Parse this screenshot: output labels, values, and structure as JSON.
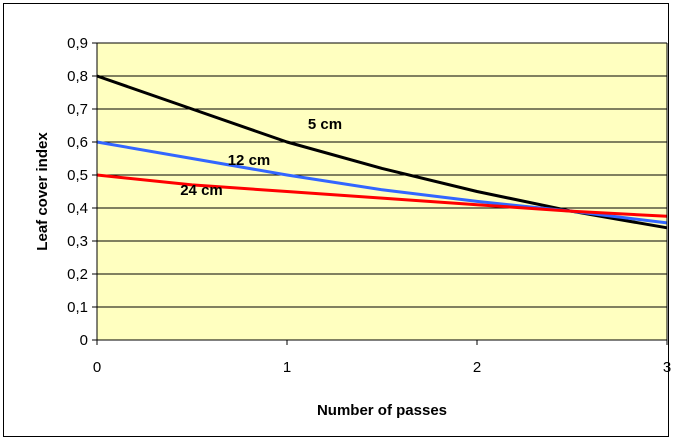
{
  "chart_data": {
    "type": "line",
    "title": "",
    "xlabel": "Number of passes",
    "ylabel": "Leaf cover index",
    "xlim": [
      0,
      3
    ],
    "ylim": [
      0,
      0.9
    ],
    "x_ticks": [
      "0",
      "1",
      "2",
      "3"
    ],
    "y_ticks": [
      "0",
      "0,1",
      "0,2",
      "0,3",
      "0,4",
      "0,5",
      "0,6",
      "0,7",
      "0,8",
      "0,9"
    ],
    "grid": "horizontal",
    "plot_background": "#ffffc0",
    "series": [
      {
        "name": "5 cm",
        "color": "#000000",
        "x": [
          0,
          0.5,
          1,
          1.5,
          2,
          2.5,
          3
        ],
        "y": [
          0.8,
          0.7,
          0.6,
          0.52,
          0.45,
          0.39,
          0.34
        ]
      },
      {
        "name": "12 cm",
        "color": "#3366ff",
        "x": [
          0,
          0.5,
          1,
          1.5,
          2,
          2.5,
          3
        ],
        "y": [
          0.6,
          0.55,
          0.5,
          0.455,
          0.42,
          0.39,
          0.355
        ]
      },
      {
        "name": "24 cm",
        "color": "#ff0000",
        "x": [
          0,
          0.5,
          1,
          1.5,
          2,
          2.5,
          3
        ],
        "y": [
          0.5,
          0.47,
          0.45,
          0.43,
          0.41,
          0.39,
          0.375
        ]
      }
    ],
    "series_labels": [
      {
        "text": "5 cm",
        "x": 1.2,
        "y": 0.64
      },
      {
        "text": "12 cm",
        "x": 0.8,
        "y": 0.53
      },
      {
        "text": "24 cm",
        "x": 0.55,
        "y": 0.44
      }
    ]
  }
}
